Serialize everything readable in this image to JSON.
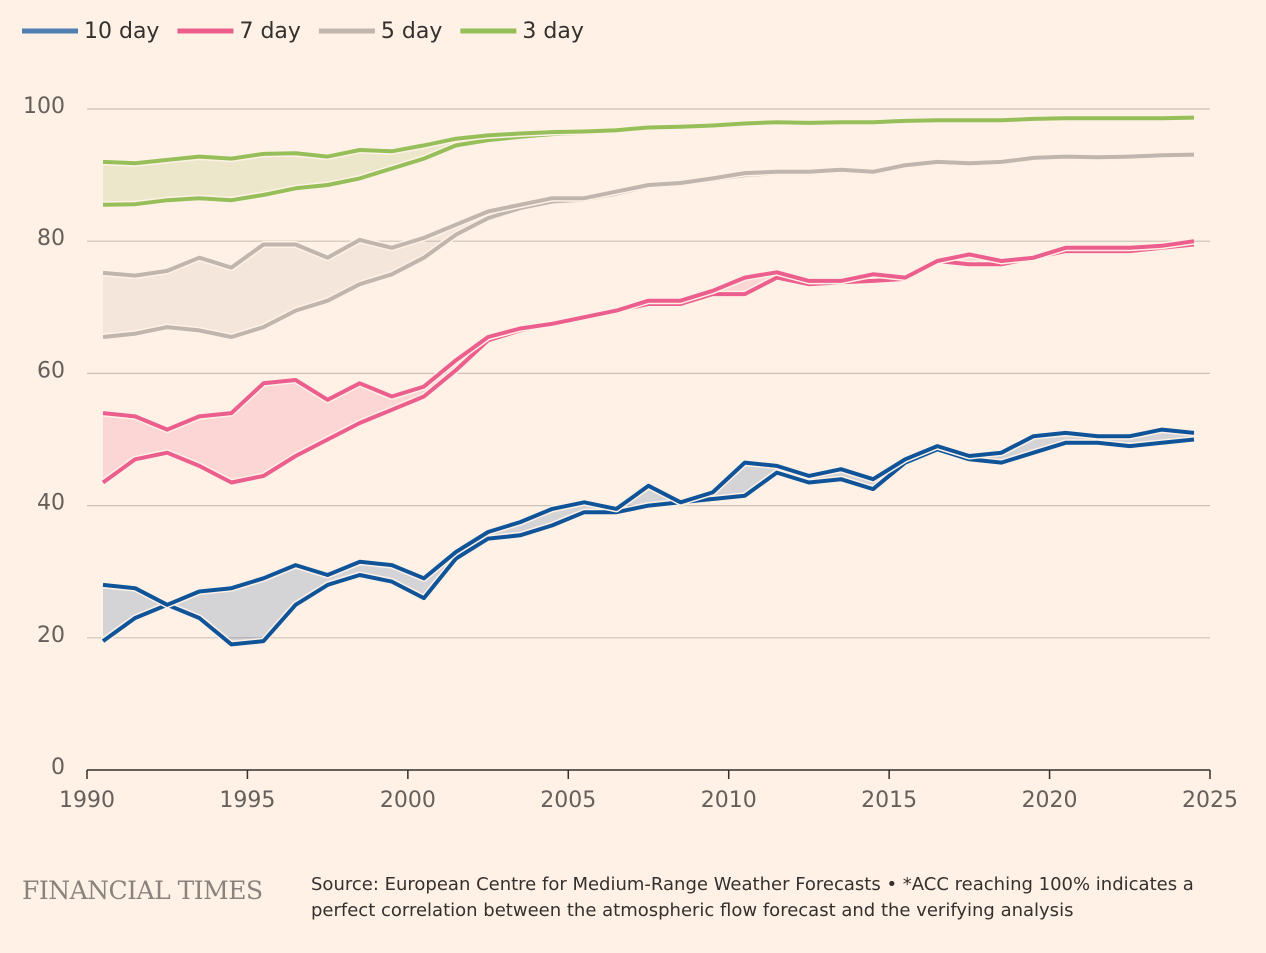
{
  "chart_data": {
    "type": "band",
    "x": [
      1990.5,
      1991.5,
      1992.5,
      1993.5,
      1994.5,
      1995.5,
      1996.5,
      1997.5,
      1998.5,
      1999.5,
      2000.5,
      2001.5,
      2002.5,
      2003.5,
      2004.5,
      2005.5,
      2006.5,
      2007.5,
      2008.5,
      2009.5,
      2010.5,
      2011.5,
      2012.5,
      2013.5,
      2014.5,
      2015.5,
      2016.5,
      2017.5,
      2018.5,
      2019.5,
      2020.5,
      2021.5,
      2022.5,
      2023.5,
      2024.5
    ],
    "series": [
      {
        "name": "10 day",
        "color": "#0f5499",
        "legend_color": "#4e7fb0",
        "high": [
          28,
          27.5,
          25,
          27,
          27.5,
          29,
          31,
          29.5,
          31.5,
          31,
          29,
          33,
          36,
          37.5,
          39.5,
          40.5,
          39.5,
          43,
          40.5,
          42,
          46.5,
          46,
          44.5,
          45.5,
          44,
          47,
          49,
          47.5,
          48,
          50.5,
          51,
          50.5,
          50.5,
          51.5,
          51
        ],
        "low": [
          19.5,
          23,
          25,
          23,
          19,
          19.5,
          25,
          28,
          29.5,
          28.5,
          26,
          32,
          35,
          35.5,
          37,
          39,
          39,
          40,
          40.5,
          41,
          41.5,
          45,
          43.5,
          44,
          42.5,
          46.5,
          48.5,
          47,
          46.5,
          48,
          49.5,
          49.5,
          49,
          49.5,
          50
        ]
      },
      {
        "name": "7 day",
        "color": "#eb5e8d",
        "legend_color": "#eb5e8d",
        "high": [
          54,
          53.5,
          51.5,
          53.5,
          54,
          58.5,
          59,
          56,
          58.5,
          56.5,
          58,
          62,
          65.5,
          66.8,
          67.5,
          68.5,
          69.5,
          71,
          71,
          72.5,
          74.5,
          75.3,
          74,
          74,
          75,
          74.5,
          77,
          78,
          77,
          77.5,
          79,
          79,
          79,
          79.3,
          80
        ],
        "low": [
          43.5,
          47,
          48,
          46,
          43.5,
          44.5,
          47.5,
          50,
          52.5,
          54.5,
          56.5,
          60.5,
          65,
          66.5,
          67.5,
          68.5,
          69.5,
          70.5,
          70.5,
          72,
          72,
          74.5,
          73.5,
          73.8,
          74,
          74.3,
          77,
          76.5,
          76.5,
          77.5,
          78.5,
          78.5,
          78.5,
          79,
          79.5
        ]
      },
      {
        "name": "5 day",
        "color": "#c0b6ae",
        "legend_color": "#c0b6ae",
        "high": [
          75.2,
          74.8,
          75.5,
          77.5,
          76,
          79.5,
          79.5,
          77.5,
          80.2,
          79,
          80.5,
          82.5,
          84.5,
          85.5,
          86.5,
          86.5,
          87.5,
          88.5,
          88.8,
          89.5,
          90.3,
          90.5,
          90.5,
          90.8,
          90.5,
          91.5,
          92,
          91.8,
          92,
          92.6,
          92.8,
          92.7,
          92.8,
          93,
          93.1
        ],
        "low": [
          65.5,
          66,
          67,
          66.5,
          65.5,
          67,
          69.5,
          71,
          73.5,
          75,
          77.5,
          81,
          83.5,
          85,
          86,
          86.3,
          87.2,
          88.3,
          88.6,
          89.3,
          90,
          90.3,
          90.3,
          90.6,
          90.3,
          91.3,
          91.8,
          91.6,
          91.8,
          92.4,
          92.6,
          92.5,
          92.6,
          92.8,
          92.9
        ]
      },
      {
        "name": "3 day",
        "color": "#96bf5a",
        "legend_color": "#96bf5a",
        "high": [
          92,
          91.8,
          92.3,
          92.8,
          92.5,
          93.2,
          93.3,
          92.8,
          93.8,
          93.6,
          94.5,
          95.5,
          96,
          96.3,
          96.5,
          96.6,
          96.8,
          97.2,
          97.3,
          97.5,
          97.8,
          98,
          97.9,
          98,
          98,
          98.2,
          98.3,
          98.3,
          98.3,
          98.5,
          98.6,
          98.6,
          98.6,
          98.6,
          98.7
        ],
        "low": [
          85.5,
          85.6,
          86.2,
          86.5,
          86.2,
          87,
          88,
          88.5,
          89.5,
          91,
          92.5,
          94.5,
          95.3,
          95.8,
          96.2,
          96.4,
          96.6,
          97,
          97.2,
          97.4,
          97.7,
          97.9,
          97.8,
          97.9,
          97.9,
          98.1,
          98.2,
          98.2,
          98.2,
          98.4,
          98.5,
          98.5,
          98.5,
          98.5,
          98.6
        ]
      }
    ],
    "xlim": [
      1990,
      2025
    ],
    "xticks": [
      1990,
      1995,
      2000,
      2005,
      2010,
      2015,
      2020,
      2025
    ],
    "ylim": [
      0,
      100
    ],
    "yticks": [
      0,
      20,
      40,
      60,
      80,
      100
    ],
    "grid": true,
    "legend": "top-left",
    "brand": "FINANCIAL TIMES",
    "source": "Source: European Centre for Medium-Range Weather Forecasts • *ACC reaching 100% indicates a perfect correlation between the atmospheric flow forecast and the verifying analysis"
  }
}
